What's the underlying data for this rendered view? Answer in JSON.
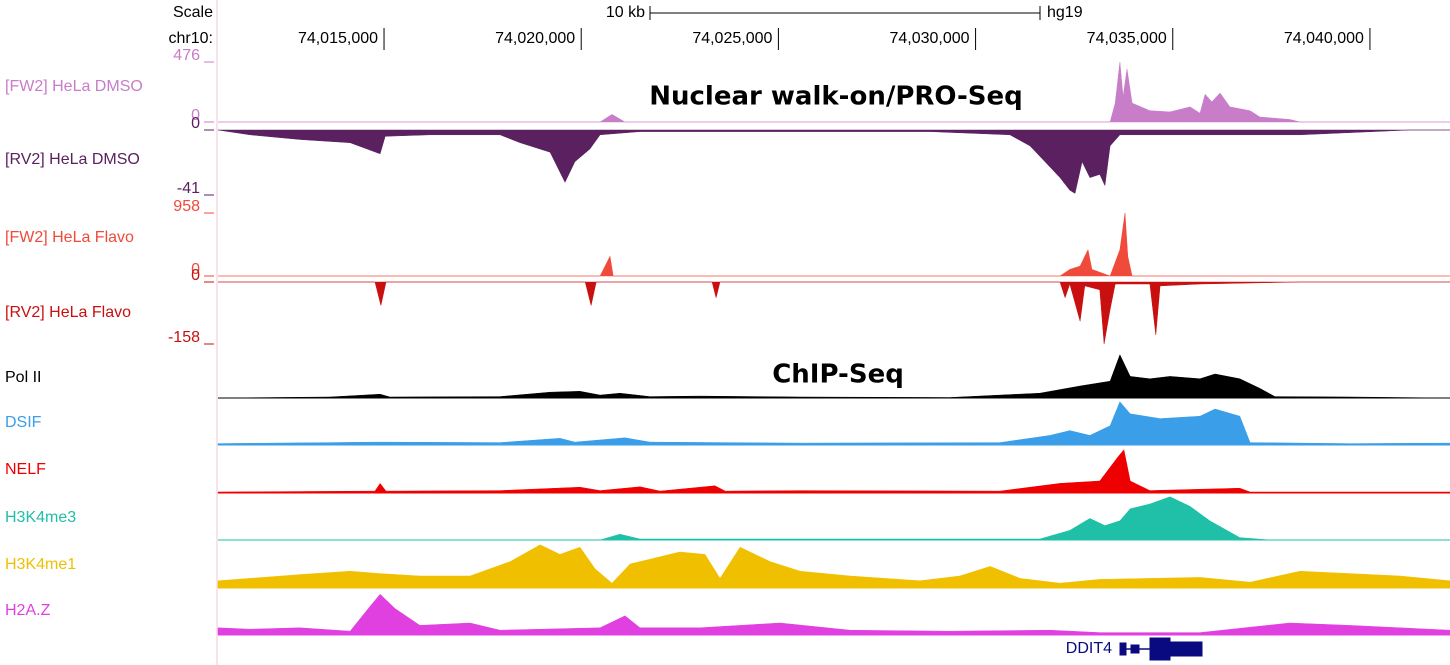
{
  "chart_data": {
    "type": "genome-tracks",
    "scale_label": "Scale",
    "chrom_label": "chr10:",
    "scalebar_label": "10 kb",
    "assembly": "hg19",
    "annotations": [
      "Nuclear walk-on/PRO-Seq",
      "ChIP-Seq"
    ],
    "gene": "DDIT4",
    "xlim": [
      74010790,
      74042030
    ],
    "xticks": [
      {
        "value": 74015000,
        "label": "74,015,000"
      },
      {
        "value": 74020000,
        "label": "74,020,000"
      },
      {
        "value": 74025000,
        "label": "74,025,000"
      },
      {
        "value": 74030000,
        "label": "74,030,000"
      },
      {
        "value": 74035000,
        "label": "74,035,000"
      },
      {
        "value": 74040000,
        "label": "74,040,000"
      }
    ],
    "tracks": [
      {
        "name": "[FW2] HeLa DMSO",
        "color": "#c77dc7",
        "ylim": [
          0,
          476
        ],
        "yticks": [
          476,
          0
        ],
        "x": [
          74010790,
          74020480,
          74020780,
          74021110,
          74033410,
          74033540,
          74033660,
          74033740,
          74033840,
          74033970,
          74034420,
          74034930,
          74035440,
          74035690,
          74035820,
          74035990,
          74036200,
          74036450,
          74036960,
          74037210,
          74037970,
          74038230,
          74042030
        ],
        "values": [
          0,
          0,
          60,
          0,
          0,
          150,
          476,
          200,
          420,
          150,
          90,
          80,
          120,
          70,
          220,
          160,
          230,
          120,
          90,
          40,
          20,
          0,
          0
        ]
      },
      {
        "name": "[RV2] HeLa DMSO",
        "color": "#5a2060",
        "ylim": [
          -41,
          0
        ],
        "yticks": [
          0,
          -41
        ],
        "x": [
          74010790,
          74011600,
          74012870,
          74014140,
          74014900,
          74015030,
          74016170,
          74017940,
          74018450,
          74019210,
          74019590,
          74019840,
          74020220,
          74020480,
          74021490,
          74028840,
          74030870,
          74031380,
          74031760,
          74032140,
          74032390,
          74032520,
          74032700,
          74032900,
          74033150,
          74033280,
          74033410,
          74033660,
          74035690,
          74038230,
          74041010,
          74042030
        ],
        "values": [
          0,
          -3,
          -6,
          -8,
          -15,
          -4,
          -3,
          -3,
          -8,
          -14,
          -33,
          -20,
          -12,
          -3,
          -1,
          -1,
          -3,
          -10,
          -20,
          -30,
          -38,
          -40,
          -20,
          -30,
          -28,
          -35,
          -10,
          -3,
          -3,
          -3,
          0,
          0
        ]
      },
      {
        "name": "[FW2] HeLa Flavo",
        "color": "#f04a3a",
        "ylim": [
          0,
          958
        ],
        "yticks": [
          958,
          0
        ],
        "x": [
          74010790,
          74020480,
          74020730,
          74020810,
          74032140,
          74032390,
          74032650,
          74032850,
          74032950,
          74033410,
          74033660,
          74033790,
          74033860,
          74033970,
          74042030
        ],
        "values": [
          0,
          0,
          300,
          0,
          0,
          100,
          150,
          400,
          100,
          0,
          400,
          958,
          300,
          0,
          0
        ]
      },
      {
        "name": "[RV2] HeLa Flavo",
        "color": "#c81010",
        "ylim": [
          -158,
          0
        ],
        "yticks": [
          0,
          -158
        ],
        "x": [
          74010790,
          74014770,
          74014920,
          74015050,
          74020100,
          74020250,
          74020380,
          74023320,
          74023420,
          74023520,
          74032140,
          74032270,
          74032390,
          74032650,
          74032770,
          74033150,
          74033260,
          74033410,
          74033540,
          74034420,
          74034570,
          74034680,
          74035690,
          74038230,
          74042030
        ],
        "values": [
          0,
          0,
          -60,
          0,
          0,
          -60,
          0,
          0,
          -40,
          0,
          0,
          -40,
          -5,
          -100,
          -10,
          -20,
          -158,
          -70,
          -5,
          -5,
          -135,
          -10,
          -5,
          0,
          0
        ]
      },
      {
        "name": "Pol II",
        "color": "#000000",
        "ylim": [
          0,
          100
        ],
        "x": [
          74010790,
          74013630,
          74014900,
          74015150,
          74017940,
          74019210,
          74019970,
          74020480,
          74020980,
          74021740,
          74023010,
          74025550,
          74029350,
          74031630,
          74032650,
          74033410,
          74033660,
          74033920,
          74034420,
          74034930,
          74035690,
          74036070,
          74036700,
          74037210,
          74037590,
          74039490,
          74042030
        ],
        "values": [
          0,
          2,
          8,
          2,
          3,
          12,
          14,
          6,
          10,
          3,
          4,
          2,
          1,
          10,
          25,
          35,
          90,
          45,
          40,
          45,
          40,
          50,
          40,
          20,
          3,
          2,
          0
        ]
      },
      {
        "name": "DSIF",
        "color": "#3a9ee8",
        "ylim": [
          0,
          100
        ],
        "x": [
          74010790,
          74013630,
          74014900,
          74017940,
          74019460,
          74019840,
          74021110,
          74021740,
          74025550,
          74030620,
          74031890,
          74032390,
          74032900,
          74033410,
          74033660,
          74033920,
          74034680,
          74035690,
          74036070,
          74036700,
          74036960,
          74039490,
          74042030
        ],
        "values": [
          3,
          5,
          6,
          5,
          14,
          6,
          15,
          6,
          4,
          5,
          20,
          30,
          20,
          40,
          90,
          65,
          55,
          60,
          75,
          60,
          5,
          3,
          4
        ]
      },
      {
        "name": "NELF",
        "color": "#ee0000",
        "ylim": [
          0,
          100
        ],
        "x": [
          74010790,
          74014770,
          74014900,
          74015050,
          74017940,
          74019970,
          74020480,
          74021490,
          74022000,
          74023390,
          74023650,
          74025550,
          74030620,
          74032140,
          74033150,
          74033610,
          74033760,
          74033920,
          74034420,
          74036700,
          74036960,
          74042030
        ],
        "values": [
          2,
          4,
          20,
          4,
          5,
          12,
          5,
          13,
          4,
          15,
          4,
          5,
          4,
          20,
          25,
          75,
          90,
          25,
          5,
          10,
          2,
          2
        ]
      },
      {
        "name": "H3K4me3",
        "color": "#1fbfa8",
        "ylim": [
          0,
          100
        ],
        "x": [
          74010790,
          74020480,
          74020980,
          74021490,
          74031630,
          74032390,
          74032900,
          74033280,
          74033660,
          74033920,
          74034420,
          74034930,
          74035440,
          74035940,
          74036700,
          74037470,
          74042030
        ],
        "values": [
          0,
          0,
          12,
          2,
          2,
          20,
          45,
          30,
          40,
          65,
          75,
          90,
          70,
          40,
          5,
          0,
          0
        ]
      },
      {
        "name": "H3K4me1",
        "color": "#f0c000",
        "ylim": [
          0,
          100
        ],
        "x": [
          74010790,
          74011600,
          74012870,
          74014140,
          74014900,
          74015910,
          74017180,
          74018200,
          74018960,
          74019460,
          74019970,
          74020350,
          74020780,
          74021240,
          74022500,
          74023140,
          74023520,
          74024030,
          74024790,
          74025550,
          74026820,
          74028590,
          74029600,
          74030370,
          74031130,
          74032140,
          74033150,
          74035690,
          74036960,
          74038230,
          74039490,
          74040760,
          74042030
        ],
        "values": [
          15,
          20,
          28,
          35,
          30,
          25,
          25,
          55,
          90,
          70,
          85,
          40,
          10,
          50,
          75,
          70,
          20,
          85,
          55,
          35,
          25,
          15,
          25,
          45,
          20,
          10,
          18,
          22,
          12,
          35,
          30,
          25,
          15
        ]
      },
      {
        "name": "H2A.Z",
        "color": "#e040e0",
        "ylim": [
          0,
          100
        ],
        "x": [
          74010790,
          74011600,
          74012870,
          74014140,
          74014650,
          74014900,
          74015280,
          74015910,
          74017180,
          74017940,
          74020480,
          74021110,
          74021490,
          74023010,
          74025040,
          74026820,
          74029350,
          74031890,
          74033150,
          74035690,
          74037970,
          74039490,
          74042030
        ],
        "values": [
          15,
          12,
          15,
          8,
          60,
          85,
          55,
          20,
          25,
          10,
          15,
          40,
          15,
          15,
          25,
          10,
          8,
          10,
          5,
          5,
          25,
          20,
          10
        ]
      }
    ]
  }
}
